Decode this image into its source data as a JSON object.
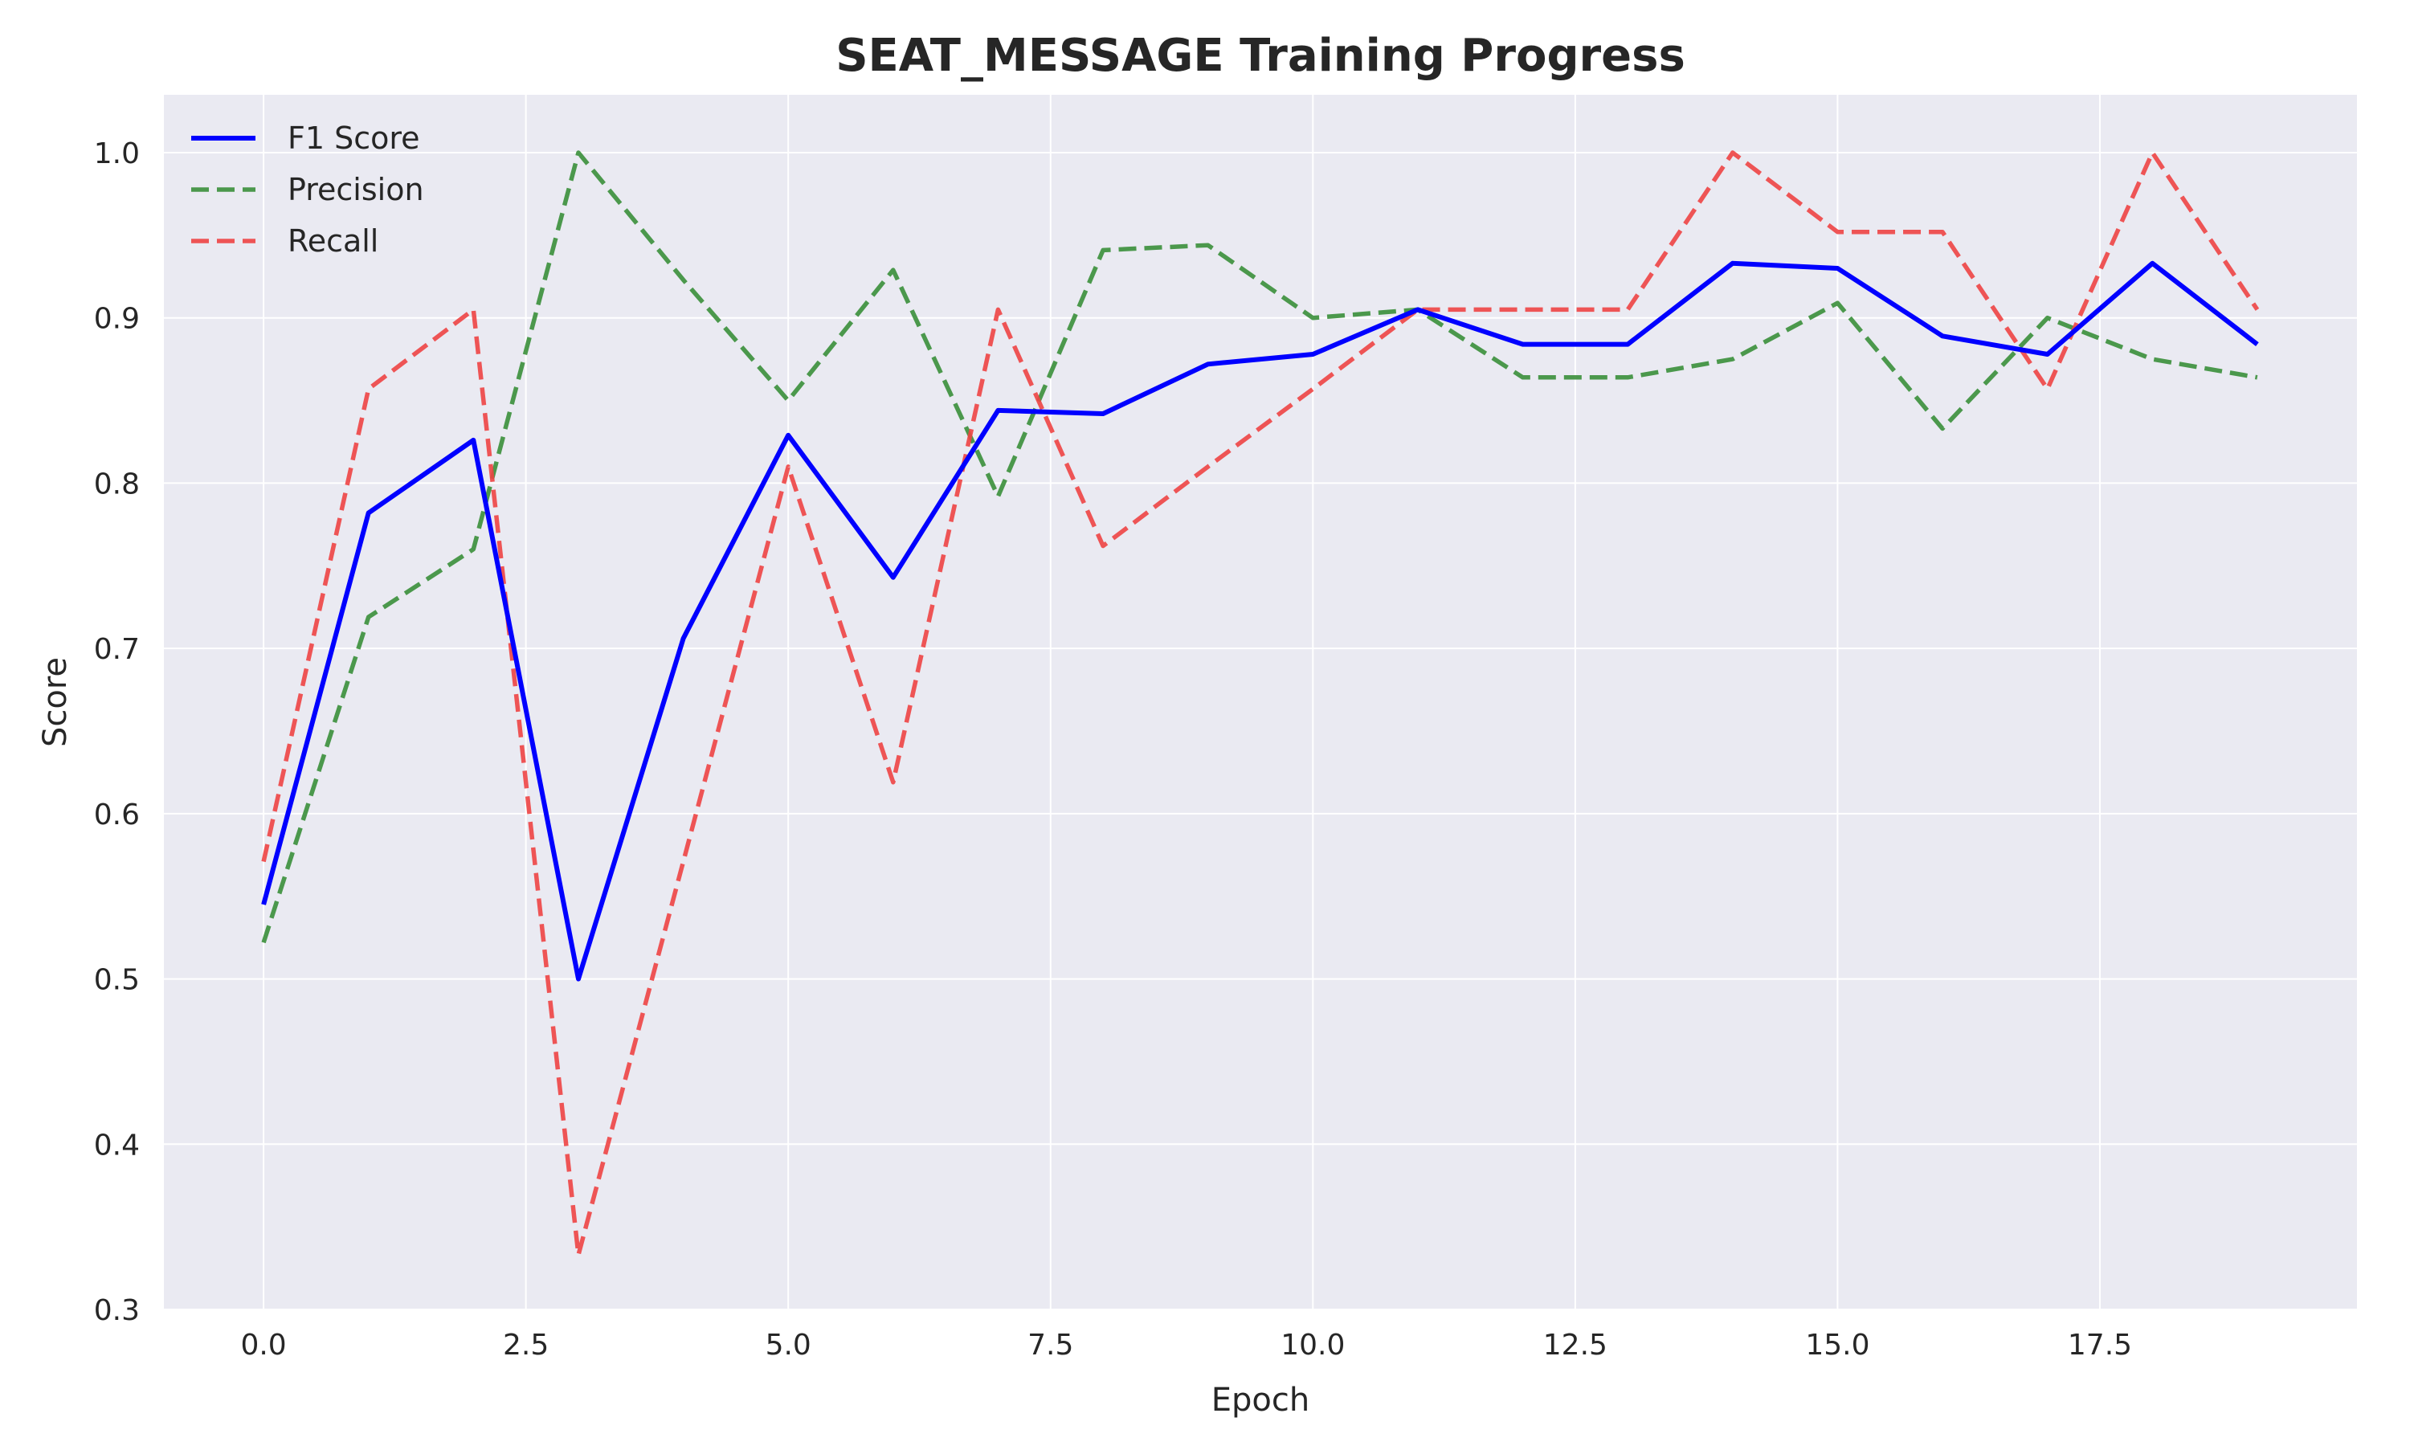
{
  "chart_data": {
    "type": "line",
    "title": "SEAT_MESSAGE Training Progress",
    "xlabel": "Epoch",
    "ylabel": "Score",
    "xlim": [
      -0.95,
      19.95
    ],
    "ylim": [
      0.3,
      1.035
    ],
    "xticks": [
      0.0,
      2.5,
      5.0,
      7.5,
      10.0,
      12.5,
      15.0,
      17.5
    ],
    "xtick_labels": [
      "0.0",
      "2.5",
      "5.0",
      "7.5",
      "10.0",
      "12.5",
      "15.0",
      "17.5"
    ],
    "yticks": [
      0.3,
      0.4,
      0.5,
      0.6,
      0.7,
      0.8,
      0.9,
      1.0
    ],
    "ytick_labels": [
      "0.3",
      "0.4",
      "0.5",
      "0.6",
      "0.7",
      "0.8",
      "0.9",
      "1.0"
    ],
    "grid": true,
    "legend_position": "top-left",
    "background": "#eaeaf2",
    "x": [
      0,
      1,
      2,
      3,
      4,
      5,
      6,
      7,
      8,
      9,
      10,
      11,
      12,
      13,
      14,
      15,
      16,
      17,
      18,
      19
    ],
    "series": [
      {
        "name": "F1 Score",
        "color": "#0000ff",
        "style": "solid",
        "values": [
          0.545,
          0.782,
          0.826,
          0.5,
          0.706,
          0.829,
          0.743,
          0.844,
          0.842,
          0.872,
          0.878,
          0.905,
          0.884,
          0.884,
          0.933,
          0.93,
          0.889,
          0.878,
          0.933,
          0.884
        ]
      },
      {
        "name": "Precision",
        "color": "#3a8f3a",
        "style": "dashed",
        "values": [
          0.522,
          0.719,
          0.76,
          1.0,
          0.923,
          0.85,
          0.929,
          0.792,
          0.941,
          0.944,
          0.9,
          0.905,
          0.864,
          0.864,
          0.875,
          0.909,
          0.833,
          0.9,
          0.875,
          0.864
        ]
      },
      {
        "name": "Recall",
        "color": "#ee4444",
        "style": "dashed",
        "values": [
          0.571,
          0.857,
          0.905,
          0.333,
          0.571,
          0.81,
          0.619,
          0.905,
          0.762,
          0.81,
          0.857,
          0.905,
          0.905,
          0.905,
          1.0,
          0.952,
          0.952,
          0.857,
          1.0,
          0.905
        ]
      }
    ]
  }
}
